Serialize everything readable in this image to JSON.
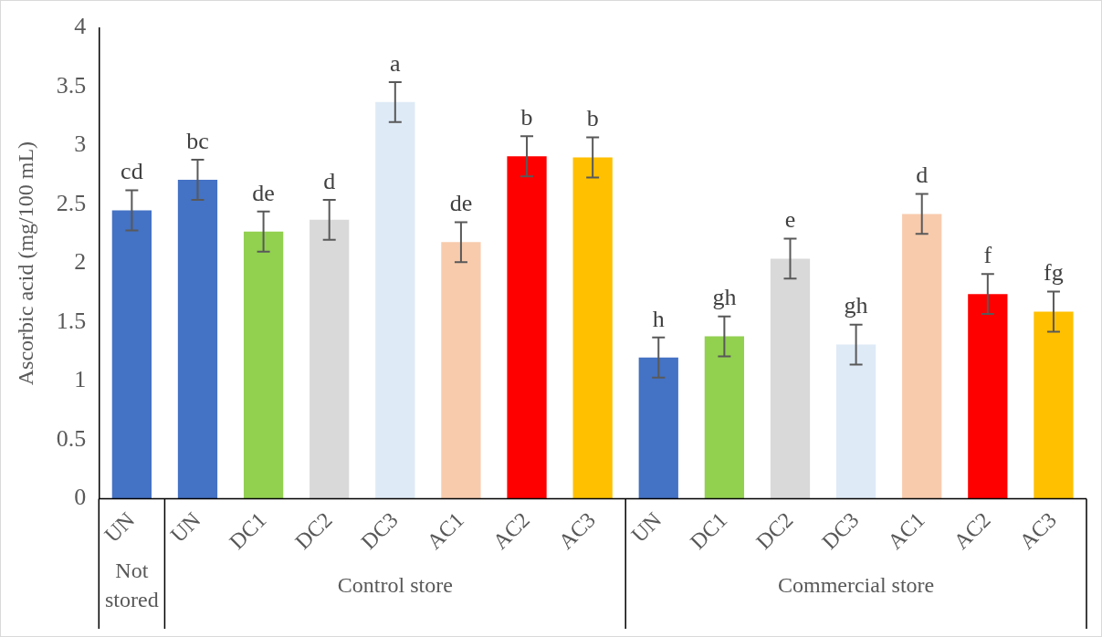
{
  "chart_data": {
    "type": "bar",
    "ylabel": "Ascorbic acid (mg/100 mL)",
    "categories": [
      "UN",
      "UN",
      "DC1",
      "DC2",
      "DC3",
      "AC1",
      "AC2",
      "AC3",
      "UN",
      "DC1",
      "DC2",
      "DC3",
      "AC1",
      "AC2",
      "AC3"
    ],
    "values": [
      2.45,
      2.71,
      2.27,
      2.37,
      3.37,
      2.18,
      2.91,
      2.9,
      1.2,
      1.38,
      2.04,
      1.31,
      2.42,
      1.74,
      1.59
    ],
    "errors": [
      0.17,
      0.17,
      0.17,
      0.17,
      0.17,
      0.17,
      0.17,
      0.17,
      0.17,
      0.17,
      0.17,
      0.17,
      0.17,
      0.17,
      0.17
    ],
    "value_labels": [
      "cd",
      "bc",
      "de",
      "d",
      "a",
      "de",
      "b",
      "b",
      "h",
      "gh",
      "e",
      "gh",
      "d",
      "f",
      "fg"
    ],
    "colors": [
      "#4472c4",
      "#4472c4",
      "#92d050",
      "#d9d9d9",
      "#deeaf6",
      "#f8cbad",
      "#ff0000",
      "#ffc000",
      "#4472c4",
      "#92d050",
      "#d9d9d9",
      "#deeaf6",
      "#f8cbad",
      "#ff0000",
      "#ffc000"
    ],
    "ylim": [
      0,
      4
    ],
    "yticks": [
      0,
      0.5,
      1,
      1.5,
      2,
      2.5,
      3,
      3.5,
      4
    ],
    "annotations": [
      "Not stored",
      "Control store",
      "Commercial store"
    ],
    "grid": false,
    "legend": false
  }
}
